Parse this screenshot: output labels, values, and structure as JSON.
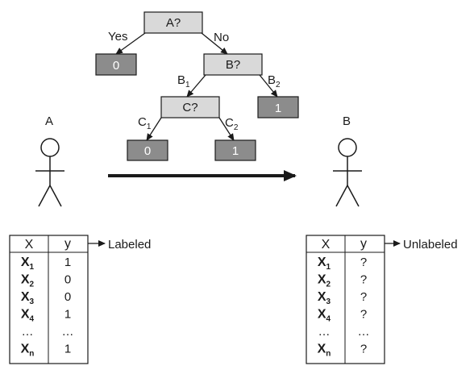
{
  "tree": {
    "root": {
      "label": "A?",
      "style": "light"
    },
    "yes_edge": "Yes",
    "no_edge": "No",
    "yes_leaf": {
      "label": "0",
      "style": "dark"
    },
    "node_b": {
      "label": "B?",
      "style": "light"
    },
    "b1_edge": "B",
    "b1_sub": "1",
    "b2_edge": "B",
    "b2_sub": "2",
    "b2_leaf": {
      "label": "1",
      "style": "dark"
    },
    "node_c": {
      "label": "C?",
      "style": "light"
    },
    "c1_edge": "C",
    "c1_sub": "1",
    "c2_edge": "C",
    "c2_sub": "2",
    "c1_leaf": {
      "label": "0",
      "style": "dark"
    },
    "c2_leaf": {
      "label": "1",
      "style": "dark"
    }
  },
  "person_a": {
    "label": "A"
  },
  "person_b": {
    "label": "B"
  },
  "labeled_table": {
    "header_x": "X",
    "header_y": "y",
    "caption": "Labeled",
    "rows": [
      {
        "x": "X",
        "sub": "1",
        "y": "1"
      },
      {
        "x": "X",
        "sub": "2",
        "y": "0"
      },
      {
        "x": "X",
        "sub": "3",
        "y": "0"
      },
      {
        "x": "X",
        "sub": "4",
        "y": "1"
      },
      {
        "x": "…",
        "sub": "",
        "y": "…"
      },
      {
        "x": "X",
        "sub": "n",
        "y": "1"
      }
    ]
  },
  "unlabeled_table": {
    "header_x": "X",
    "header_y": "y",
    "caption": "Unlabeled",
    "rows": [
      {
        "x": "X",
        "sub": "1",
        "y": "?"
      },
      {
        "x": "X",
        "sub": "2",
        "y": "?"
      },
      {
        "x": "X",
        "sub": "3",
        "y": "?"
      },
      {
        "x": "X",
        "sub": "4",
        "y": "?"
      },
      {
        "x": "…",
        "sub": "",
        "y": "…"
      },
      {
        "x": "X",
        "sub": "n",
        "y": "?"
      }
    ]
  },
  "colors": {
    "light_node": "#d9d9d9",
    "dark_node": "#8c8c8c",
    "stroke": "#1a1a1a"
  }
}
